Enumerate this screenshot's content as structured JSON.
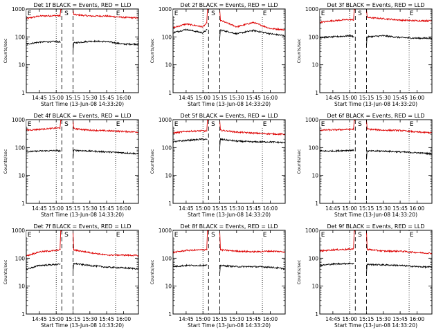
{
  "page": {
    "background": "#ffffff",
    "axis_color": "#000000"
  },
  "shared_axes": {
    "ylabel": "Counts/sec",
    "xlabel": "Start Time (13-Jun-08 14:33:20)",
    "xticks": [
      "14:45",
      "15:00",
      "15:15",
      "15:30",
      "15:45",
      "16:00"
    ],
    "yticks": [
      "1",
      "10",
      "100",
      "1000"
    ],
    "yscale": "log",
    "ylim": [
      1,
      1000
    ],
    "xlim": [
      "14:33:20",
      "16:13:20"
    ]
  },
  "series_colors": {
    "events": "#000000",
    "lld": "#dd0000"
  },
  "chart_data": [
    {
      "type": "line",
      "title": "Det 1f BLACK = Events, RED = LLD",
      "markers": {
        "S": "15:07",
        "E_left": "14:34",
        "E_right": "15:53"
      },
      "dotted_x": [
        "15:00",
        "15:53"
      ],
      "dashed_x": [
        "15:05",
        "15:15"
      ],
      "series": [
        {
          "key": "lld",
          "x": [
            "14:33",
            "14:45",
            "15:00",
            "15:05",
            "15:15",
            "15:30",
            "15:45",
            "16:00",
            "16:13"
          ],
          "values": [
            450,
            560,
            580,
            560,
            640,
            560,
            560,
            500,
            480
          ]
        },
        {
          "key": "events",
          "x": [
            "14:33",
            "14:45",
            "15:00",
            "15:05",
            "15:15",
            "15:30",
            "15:45",
            "16:00",
            "16:13"
          ],
          "values": [
            55,
            65,
            68,
            65,
            60,
            70,
            68,
            55,
            55
          ]
        }
      ]
    },
    {
      "type": "line",
      "title": "Det 2f BLACK = Events, RED = LLD",
      "markers": {
        "S": "15:07",
        "E_left": "14:34",
        "E_right": "15:53"
      },
      "dotted_x": [
        "15:00",
        "15:53"
      ],
      "dashed_x": [
        "15:05",
        "15:15"
      ],
      "series": [
        {
          "key": "lld",
          "x": [
            "14:33",
            "14:45",
            "15:00",
            "15:05",
            "15:15",
            "15:30",
            "15:45",
            "16:00",
            "16:13"
          ],
          "values": [
            210,
            290,
            230,
            360,
            400,
            230,
            330,
            200,
            180
          ]
        },
        {
          "key": "events",
          "x": [
            "14:33",
            "14:45",
            "15:00",
            "15:05",
            "15:15",
            "15:30",
            "15:45",
            "16:00",
            "16:13"
          ],
          "values": [
            140,
            185,
            140,
            200,
            180,
            130,
            170,
            130,
            110
          ]
        }
      ]
    },
    {
      "type": "line",
      "title": "Det 3f BLACK = Events, RED = LLD",
      "markers": {
        "S": "15:07",
        "E_left": "14:34",
        "E_right": "15:53"
      },
      "dotted_x": [
        "15:00",
        "15:53"
      ],
      "dashed_x": [
        "15:05",
        "15:15"
      ],
      "series": [
        {
          "key": "lld",
          "x": [
            "14:33",
            "14:45",
            "15:00",
            "15:05",
            "15:15",
            "15:30",
            "15:45",
            "16:00",
            "16:13"
          ],
          "values": [
            330,
            380,
            420,
            400,
            500,
            450,
            400,
            380,
            380
          ]
        },
        {
          "key": "events",
          "x": [
            "14:33",
            "14:45",
            "15:00",
            "15:05",
            "15:15",
            "15:30",
            "15:45",
            "16:00",
            "16:13"
          ],
          "values": [
            95,
            100,
            110,
            100,
            100,
            110,
            95,
            90,
            90
          ]
        }
      ]
    },
    {
      "type": "line",
      "title": "Det 4f BLACK = Events, RED = LLD",
      "markers": {
        "S": "15:07",
        "E_left": "14:34",
        "E_right": "15:53"
      },
      "dotted_x": [
        "15:00",
        "15:53"
      ],
      "dashed_x": [
        "15:05",
        "15:15"
      ],
      "series": [
        {
          "key": "lld",
          "x": [
            "14:33",
            "14:45",
            "15:00",
            "15:05",
            "15:15",
            "15:30",
            "15:45",
            "16:00",
            "16:13"
          ],
          "values": [
            420,
            450,
            500,
            500,
            480,
            420,
            400,
            380,
            360
          ]
        },
        {
          "key": "events",
          "x": [
            "14:33",
            "14:45",
            "15:00",
            "15:05",
            "15:15",
            "15:30",
            "15:45",
            "16:00",
            "16:13"
          ],
          "values": [
            70,
            75,
            78,
            75,
            80,
            75,
            70,
            65,
            60
          ]
        }
      ]
    },
    {
      "type": "line",
      "title": "Det 5f BLACK = Events, RED = LLD",
      "markers": {
        "S": "15:07",
        "E_left": "14:34",
        "E_right": "15:53"
      },
      "dotted_x": [
        "15:00",
        "15:53"
      ],
      "dashed_x": [
        "15:05",
        "15:15"
      ],
      "series": [
        {
          "key": "lld",
          "x": [
            "14:33",
            "14:45",
            "15:00",
            "15:05",
            "15:15",
            "15:30",
            "15:45",
            "16:00",
            "16:13"
          ],
          "values": [
            330,
            380,
            400,
            380,
            420,
            360,
            330,
            310,
            300
          ]
        },
        {
          "key": "events",
          "x": [
            "14:33",
            "14:45",
            "15:00",
            "15:05",
            "15:15",
            "15:30",
            "15:45",
            "16:00",
            "16:13"
          ],
          "values": [
            160,
            180,
            200,
            190,
            200,
            170,
            160,
            160,
            150
          ]
        }
      ]
    },
    {
      "type": "line",
      "title": "Det 6f BLACK = Events, RED = LLD",
      "markers": {
        "S": "15:07",
        "E_left": "14:34",
        "E_right": "15:53"
      },
      "dotted_x": [
        "15:00",
        "15:53"
      ],
      "dashed_x": [
        "15:05",
        "15:15"
      ],
      "series": [
        {
          "key": "lld",
          "x": [
            "14:33",
            "14:45",
            "15:00",
            "15:05",
            "15:15",
            "15:30",
            "15:45",
            "16:00",
            "16:13"
          ],
          "values": [
            420,
            430,
            450,
            460,
            460,
            420,
            410,
            360,
            340
          ]
        },
        {
          "key": "events",
          "x": [
            "14:33",
            "14:45",
            "15:00",
            "15:05",
            "15:15",
            "15:30",
            "15:45",
            "16:00",
            "16:13"
          ],
          "values": [
            75,
            75,
            80,
            80,
            75,
            75,
            70,
            65,
            60
          ]
        }
      ]
    },
    {
      "type": "line",
      "title": "Det 7f BLACK = Events, RED = LLD",
      "markers": {
        "S": "15:07",
        "E_left": "14:34",
        "E_right": "15:53"
      },
      "dotted_x": [
        "15:00",
        "15:53"
      ],
      "dashed_x": [
        "15:05",
        "15:15"
      ],
      "series": [
        {
          "key": "lld",
          "x": [
            "14:33",
            "14:45",
            "15:00",
            "15:05",
            "15:15",
            "15:30",
            "15:45",
            "16:00",
            "16:13"
          ],
          "values": [
            120,
            170,
            190,
            210,
            200,
            160,
            130,
            130,
            125
          ]
        },
        {
          "key": "events",
          "x": [
            "14:33",
            "14:45",
            "15:00",
            "15:05",
            "15:15",
            "15:30",
            "15:45",
            "16:00",
            "16:13"
          ],
          "values": [
            40,
            55,
            60,
            60,
            65,
            55,
            48,
            45,
            42
          ]
        }
      ]
    },
    {
      "type": "line",
      "title": "Det 8f BLACK = Events, RED = LLD",
      "markers": {
        "S": "15:07",
        "E_left": "14:34",
        "E_right": "15:53"
      },
      "dotted_x": [
        "15:00",
        "15:53"
      ],
      "dashed_x": [
        "15:05",
        "15:15"
      ],
      "series": [
        {
          "key": "lld",
          "x": [
            "14:33",
            "14:45",
            "15:00",
            "15:05",
            "15:15",
            "15:30",
            "15:45",
            "16:00",
            "16:13"
          ],
          "values": [
            160,
            190,
            200,
            210,
            200,
            180,
            170,
            180,
            170
          ]
        },
        {
          "key": "events",
          "x": [
            "14:33",
            "14:45",
            "15:00",
            "15:05",
            "15:15",
            "15:30",
            "15:45",
            "16:00",
            "16:13"
          ],
          "values": [
            50,
            55,
            55,
            55,
            55,
            50,
            50,
            48,
            42
          ]
        }
      ]
    },
    {
      "type": "line",
      "title": "Det 9f BLACK = Events, RED = LLD",
      "markers": {
        "S": "15:07",
        "E_left": "14:34",
        "E_right": "15:53"
      },
      "dotted_x": [
        "15:00",
        "15:53"
      ],
      "dashed_x": [
        "15:05",
        "15:15"
      ],
      "series": [
        {
          "key": "lld",
          "x": [
            "14:33",
            "14:45",
            "15:00",
            "15:05",
            "15:15",
            "15:30",
            "15:45",
            "16:00",
            "16:13"
          ],
          "values": [
            180,
            200,
            210,
            220,
            210,
            180,
            180,
            160,
            150
          ]
        },
        {
          "key": "events",
          "x": [
            "14:33",
            "14:45",
            "15:00",
            "15:05",
            "15:15",
            "15:30",
            "15:45",
            "16:00",
            "16:13"
          ],
          "values": [
            55,
            62,
            65,
            65,
            60,
            58,
            55,
            50,
            48
          ]
        }
      ]
    }
  ]
}
